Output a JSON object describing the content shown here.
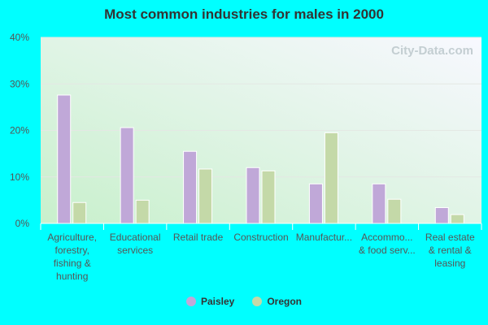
{
  "chart_data": {
    "type": "bar",
    "title": "Most common industries for males in 2000",
    "xlabel": "",
    "ylabel": "",
    "ylim": [
      0,
      40
    ],
    "yticks": [
      "0%",
      "10%",
      "20%",
      "30%",
      "40%"
    ],
    "grid": true,
    "legend_position": "bottom",
    "categories": [
      [
        "Agriculture,",
        "forestry,",
        "fishing &",
        "hunting"
      ],
      [
        "Educational",
        "services"
      ],
      [
        "Retail trade"
      ],
      [
        "Construction"
      ],
      [
        "Manufactur..."
      ],
      [
        "Accommo...",
        "& food serv..."
      ],
      [
        "Real estate",
        "& rental &",
        "leasing"
      ]
    ],
    "series": [
      {
        "name": "Paisley",
        "color": "#c0a8d8",
        "values": [
          27.6,
          20.6,
          15.5,
          12.0,
          8.5,
          8.5,
          3.4
        ]
      },
      {
        "name": "Oregon",
        "color": "#c4d9a8",
        "values": [
          4.5,
          5.0,
          11.7,
          11.3,
          19.5,
          5.2,
          1.9
        ]
      }
    ],
    "watermark": "City-Data.com"
  }
}
